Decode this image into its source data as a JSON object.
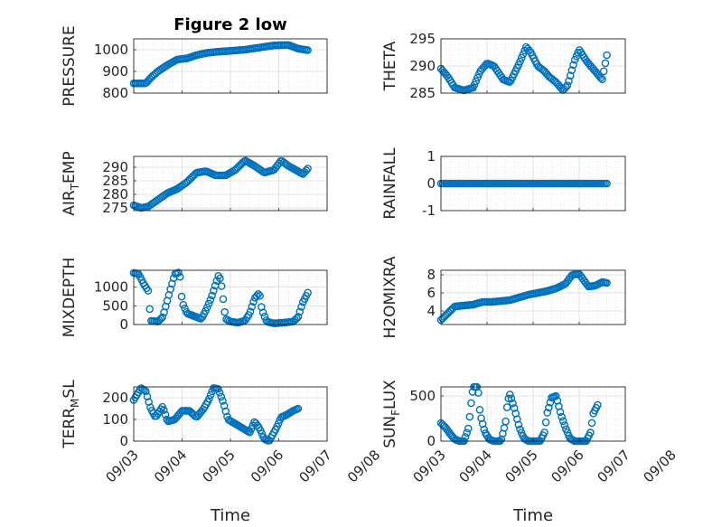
{
  "chart_data": [
    {
      "type": "scatter",
      "title": "Figure 2 low",
      "ylabel": "PRESSURE",
      "ylim": [
        800,
        1050
      ],
      "yticks": [
        800,
        900,
        1000
      ],
      "xlim": [
        0,
        4
      ],
      "xticks": [],
      "xticklabels": [],
      "xlabel": "",
      "anchors": [
        [
          0,
          845
        ],
        [
          0.25,
          845
        ],
        [
          0.35,
          870
        ],
        [
          0.5,
          900
        ],
        [
          0.7,
          930
        ],
        [
          0.9,
          955
        ],
        [
          1.1,
          960
        ],
        [
          1.3,
          975
        ],
        [
          1.5,
          985
        ],
        [
          1.7,
          990
        ],
        [
          2.0,
          995
        ],
        [
          2.3,
          1000
        ],
        [
          2.6,
          1010
        ],
        [
          2.9,
          1020
        ],
        [
          3.2,
          1022
        ],
        [
          3.4,
          1005
        ],
        [
          3.6,
          998
        ]
      ]
    },
    {
      "type": "scatter",
      "title": "",
      "ylabel": "THETA",
      "ylim": [
        285,
        295
      ],
      "yticks": [
        285,
        290,
        295
      ],
      "xlim": [
        0,
        4
      ],
      "xticks": [],
      "xticklabels": [],
      "xlabel": "",
      "anchors": [
        [
          0,
          289.5
        ],
        [
          0.15,
          288
        ],
        [
          0.3,
          286
        ],
        [
          0.5,
          285.5
        ],
        [
          0.7,
          286
        ],
        [
          0.85,
          289
        ],
        [
          1.0,
          290.5
        ],
        [
          1.15,
          290
        ],
        [
          1.35,
          287.5
        ],
        [
          1.5,
          287
        ],
        [
          1.7,
          290.5
        ],
        [
          1.85,
          293.5
        ],
        [
          1.95,
          292.5
        ],
        [
          2.1,
          290
        ],
        [
          2.25,
          289
        ],
        [
          2.35,
          288
        ],
        [
          2.5,
          287
        ],
        [
          2.65,
          285.5
        ],
        [
          2.75,
          286.5
        ],
        [
          2.9,
          291
        ],
        [
          3.0,
          293
        ],
        [
          3.15,
          291
        ],
        [
          3.3,
          289.5
        ],
        [
          3.4,
          288.5
        ],
        [
          3.5,
          287.5
        ],
        [
          3.6,
          292
        ]
      ]
    },
    {
      "type": "scatter",
      "title": "",
      "ylabel": "AIR_TEMP",
      "ylim": [
        274,
        294
      ],
      "yticks": [
        275,
        280,
        285,
        290
      ],
      "xlim": [
        0,
        4
      ],
      "xticks": [],
      "xticklabels": [],
      "xlabel": "",
      "anchors": [
        [
          0,
          276
        ],
        [
          0.15,
          275
        ],
        [
          0.3,
          275.5
        ],
        [
          0.5,
          278
        ],
        [
          0.7,
          280.5
        ],
        [
          0.9,
          282
        ],
        [
          1.1,
          284.5
        ],
        [
          1.3,
          288
        ],
        [
          1.5,
          288.5
        ],
        [
          1.7,
          287
        ],
        [
          1.9,
          287
        ],
        [
          2.1,
          289
        ],
        [
          2.3,
          292.5
        ],
        [
          2.5,
          290.5
        ],
        [
          2.7,
          288
        ],
        [
          2.9,
          289
        ],
        [
          3.05,
          292.5
        ],
        [
          3.2,
          290.5
        ],
        [
          3.35,
          289
        ],
        [
          3.5,
          287.5
        ],
        [
          3.6,
          289.5
        ]
      ]
    },
    {
      "type": "scatter",
      "title": "",
      "ylabel": "RAINFALL",
      "ylim": [
        -1,
        1
      ],
      "yticks": [
        -1,
        0,
        1
      ],
      "xlim": [
        0,
        4
      ],
      "xticks": [],
      "xticklabels": [],
      "xlabel": "",
      "anchors": [
        [
          0,
          0
        ],
        [
          3.6,
          0
        ]
      ]
    },
    {
      "type": "scatter",
      "title": "",
      "ylabel": "MIXDEPTH",
      "ylim": [
        0,
        1450
      ],
      "yticks": [
        0,
        500,
        1000
      ],
      "xlim": [
        0,
        4
      ],
      "xticks": [],
      "xticklabels": [],
      "xlabel": "",
      "anchors": [
        [
          0,
          1380
        ],
        [
          0.1,
          1350
        ],
        [
          0.2,
          1100
        ],
        [
          0.3,
          900
        ],
        [
          0.35,
          100
        ],
        [
          0.5,
          80
        ],
        [
          0.6,
          200
        ],
        [
          0.75,
          900
        ],
        [
          0.85,
          1350
        ],
        [
          0.95,
          1400
        ],
        [
          1.0,
          600
        ],
        [
          1.1,
          300
        ],
        [
          1.2,
          250
        ],
        [
          1.3,
          200
        ],
        [
          1.4,
          150
        ],
        [
          1.5,
          400
        ],
        [
          1.6,
          700
        ],
        [
          1.75,
          1300
        ],
        [
          1.8,
          1200
        ],
        [
          1.9,
          150
        ],
        [
          2.0,
          80
        ],
        [
          2.15,
          50
        ],
        [
          2.3,
          100
        ],
        [
          2.4,
          300
        ],
        [
          2.5,
          700
        ],
        [
          2.6,
          850
        ],
        [
          2.65,
          400
        ],
        [
          2.75,
          80
        ],
        [
          2.9,
          30
        ],
        [
          3.1,
          50
        ],
        [
          3.3,
          80
        ],
        [
          3.4,
          200
        ],
        [
          3.5,
          600
        ],
        [
          3.6,
          850
        ]
      ]
    },
    {
      "type": "scatter",
      "title": "",
      "ylabel": "H2OMIXRA",
      "ylim": [
        2.5,
        8.5
      ],
      "yticks": [
        4,
        6,
        8
      ],
      "xlim": [
        0,
        4
      ],
      "xticks": [],
      "xticklabels": [],
      "xlabel": "",
      "anchors": [
        [
          0,
          3
        ],
        [
          0.1,
          3.5
        ],
        [
          0.2,
          4
        ],
        [
          0.3,
          4.5
        ],
        [
          0.5,
          4.6
        ],
        [
          0.7,
          4.7
        ],
        [
          0.9,
          5
        ],
        [
          1.1,
          5
        ],
        [
          1.3,
          5.1
        ],
        [
          1.5,
          5.2
        ],
        [
          1.7,
          5.5
        ],
        [
          1.9,
          5.8
        ],
        [
          2.1,
          6
        ],
        [
          2.3,
          6.2
        ],
        [
          2.5,
          6.5
        ],
        [
          2.7,
          7
        ],
        [
          2.85,
          8
        ],
        [
          3.0,
          8.1
        ],
        [
          3.1,
          7.4
        ],
        [
          3.2,
          6.7
        ],
        [
          3.35,
          6.8
        ],
        [
          3.5,
          7.2
        ],
        [
          3.6,
          7.1
        ]
      ]
    },
    {
      "type": "scatter",
      "title": "",
      "ylabel": "TERR_MSL",
      "ylim": [
        0,
        250
      ],
      "yticks": [
        0,
        100,
        200
      ],
      "xlim": [
        0,
        4
      ],
      "xticks": [
        0,
        1,
        2,
        3,
        4,
        5
      ],
      "xticklabels": [
        "09/03",
        "09/04",
        "09/05",
        "09/06",
        "09/07",
        "09/08"
      ],
      "xlabel": "Time",
      "anchors": [
        [
          0,
          190
        ],
        [
          0.15,
          245
        ],
        [
          0.25,
          230
        ],
        [
          0.35,
          150
        ],
        [
          0.45,
          110
        ],
        [
          0.6,
          160
        ],
        [
          0.7,
          90
        ],
        [
          0.85,
          100
        ],
        [
          1.0,
          140
        ],
        [
          1.15,
          140
        ],
        [
          1.3,
          110
        ],
        [
          1.45,
          150
        ],
        [
          1.55,
          190
        ],
        [
          1.65,
          245
        ],
        [
          1.75,
          240
        ],
        [
          1.85,
          180
        ],
        [
          1.95,
          100
        ],
        [
          2.1,
          80
        ],
        [
          2.25,
          60
        ],
        [
          2.4,
          40
        ],
        [
          2.5,
          90
        ],
        [
          2.6,
          60
        ],
        [
          2.7,
          10
        ],
        [
          2.8,
          0
        ],
        [
          2.95,
          60
        ],
        [
          3.05,
          110
        ],
        [
          3.15,
          120
        ],
        [
          3.3,
          140
        ],
        [
          3.4,
          150
        ]
      ]
    },
    {
      "type": "scatter",
      "title": "",
      "ylabel": "SUN_FLUX",
      "ylim": [
        0,
        600
      ],
      "yticks": [
        0,
        500
      ],
      "xlim": [
        0,
        4
      ],
      "xticks": [
        0,
        1,
        2,
        3,
        4,
        5
      ],
      "xticklabels": [
        "09/03",
        "09/04",
        "09/05",
        "09/06",
        "09/07",
        "09/08"
      ],
      "xlabel": "Time",
      "anchors": [
        [
          0,
          200
        ],
        [
          0.1,
          150
        ],
        [
          0.2,
          80
        ],
        [
          0.3,
          20
        ],
        [
          0.4,
          0
        ],
        [
          0.5,
          0
        ],
        [
          0.6,
          150
        ],
        [
          0.65,
          400
        ],
        [
          0.7,
          600
        ],
        [
          0.8,
          600
        ],
        [
          0.85,
          300
        ],
        [
          0.95,
          100
        ],
        [
          1.05,
          20
        ],
        [
          1.15,
          0
        ],
        [
          1.3,
          0
        ],
        [
          1.4,
          200
        ],
        [
          1.45,
          450
        ],
        [
          1.5,
          520
        ],
        [
          1.6,
          350
        ],
        [
          1.7,
          150
        ],
        [
          1.8,
          30
        ],
        [
          1.9,
          0
        ],
        [
          2.0,
          0
        ],
        [
          2.15,
          0
        ],
        [
          2.25,
          100
        ],
        [
          2.3,
          300
        ],
        [
          2.4,
          480
        ],
        [
          2.5,
          500
        ],
        [
          2.6,
          300
        ],
        [
          2.7,
          150
        ],
        [
          2.8,
          30
        ],
        [
          2.9,
          0
        ],
        [
          3.0,
          0
        ],
        [
          3.15,
          0
        ],
        [
          3.25,
          100
        ],
        [
          3.3,
          300
        ],
        [
          3.4,
          400
        ]
      ]
    }
  ]
}
